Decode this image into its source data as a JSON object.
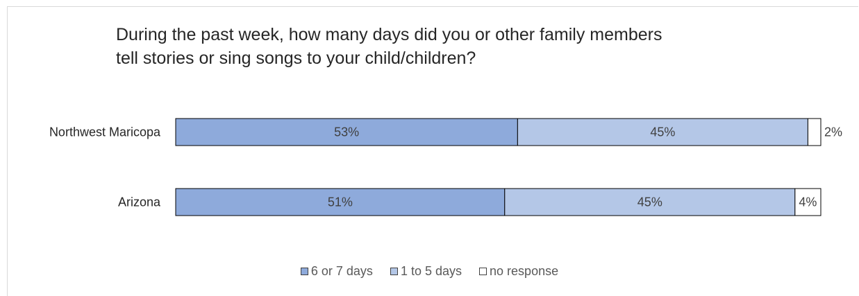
{
  "chart_data": {
    "type": "bar",
    "orientation": "horizontal",
    "stacked": true,
    "title_lines": [
      "During the past week, how many days did you or other family members",
      "tell stories or sing songs to your child/children?"
    ],
    "categories": [
      "Northwest Maricopa",
      "Arizona"
    ],
    "series": [
      {
        "name": "6 or 7 days",
        "values": [
          53,
          51
        ],
        "labels": [
          "53%",
          "51%"
        ],
        "color": "#8eaadb"
      },
      {
        "name": "1 to 5 days",
        "values": [
          45,
          45
        ],
        "labels": [
          "45%",
          "45%"
        ],
        "color": "#b4c7e7"
      },
      {
        "name": "no response",
        "values": [
          2,
          4
        ],
        "labels": [
          "2%",
          "4%"
        ],
        "color": "#ffffff"
      }
    ],
    "xlim": [
      0,
      100
    ],
    "grid": false,
    "legend_position": "bottom"
  }
}
